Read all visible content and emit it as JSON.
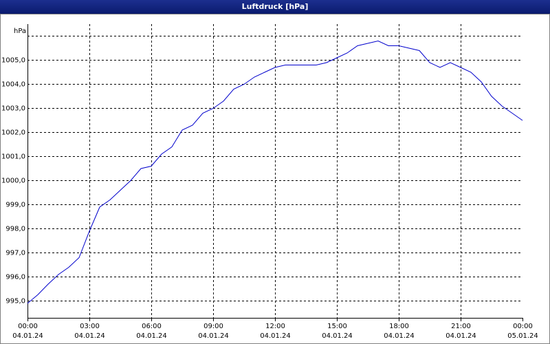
{
  "chart_data": {
    "type": "line",
    "title": "Luftdruck [hPa]",
    "y_label": "hPa",
    "x": [
      0,
      0.5,
      1,
      1.5,
      2,
      2.5,
      3,
      3.5,
      4,
      4.5,
      5,
      5.5,
      6,
      6.5,
      7,
      7.5,
      8,
      8.5,
      9,
      9.5,
      10,
      10.5,
      11,
      11.5,
      12,
      12.5,
      13,
      13.5,
      14,
      14.5,
      15,
      15.5,
      16,
      16.5,
      17,
      17.5,
      18,
      18.5,
      19,
      19.5,
      20,
      20.5,
      21,
      21.5,
      22,
      22.5,
      23,
      23.5,
      24
    ],
    "series": [
      {
        "name": "Luftdruck",
        "color": "#0000cc",
        "values": [
          994.9,
          995.26,
          995.7,
          996.1,
          996.4,
          996.8,
          997.9,
          998.9,
          999.2,
          999.6,
          1000.0,
          1000.5,
          1000.6,
          1001.1,
          1001.4,
          1002.1,
          1002.3,
          1002.8,
          1003.0,
          1003.3,
          1003.8,
          1004.0,
          1004.3,
          1004.5,
          1004.7,
          1004.8,
          1004.8,
          1004.8,
          1004.8,
          1004.9,
          1005.1,
          1005.3,
          1005.6,
          1005.7,
          1005.8,
          1005.6,
          1005.6,
          1005.5,
          1005.4,
          1004.9,
          1004.7,
          1004.9,
          1004.7,
          1004.5,
          1004.1,
          1003.5,
          1003.1,
          1002.8,
          1002.5
        ]
      }
    ],
    "xlim": [
      0,
      24
    ],
    "xticks": [
      {
        "value": 0,
        "label": "00:00"
      },
      {
        "value": 3,
        "label": "03:00"
      },
      {
        "value": 6,
        "label": "06:00"
      },
      {
        "value": 9,
        "label": "09:00"
      },
      {
        "value": 12,
        "label": "12:00"
      },
      {
        "value": 15,
        "label": "15:00"
      },
      {
        "value": 18,
        "label": "18:00"
      },
      {
        "value": 21,
        "label": "21:00"
      },
      {
        "value": 24,
        "label": "00:00"
      }
    ],
    "xtick_dates": [
      "04.01.24",
      "04.01.24",
      "04.01.24",
      "04.01.24",
      "04.01.24",
      "04.01.24",
      "04.01.24",
      "04.01.24",
      "05.01.24"
    ],
    "ylim": [
      994.3,
      1006.5
    ],
    "yticks": [
      {
        "value": 995,
        "label": "995,0"
      },
      {
        "value": 996,
        "label": "996,0"
      },
      {
        "value": 997,
        "label": "997,0"
      },
      {
        "value": 998,
        "label": "998,0"
      },
      {
        "value": 999,
        "label": "999,0"
      },
      {
        "value": 1000,
        "label": "1000,0"
      },
      {
        "value": 1001,
        "label": "1001,0"
      },
      {
        "value": 1002,
        "label": "1002,0"
      },
      {
        "value": 1003,
        "label": "1003,0"
      },
      {
        "value": 1004,
        "label": "1004,0"
      },
      {
        "value": 1005,
        "label": "1005,0"
      },
      {
        "value": 1006,
        "label": null
      }
    ],
    "grid": true
  }
}
